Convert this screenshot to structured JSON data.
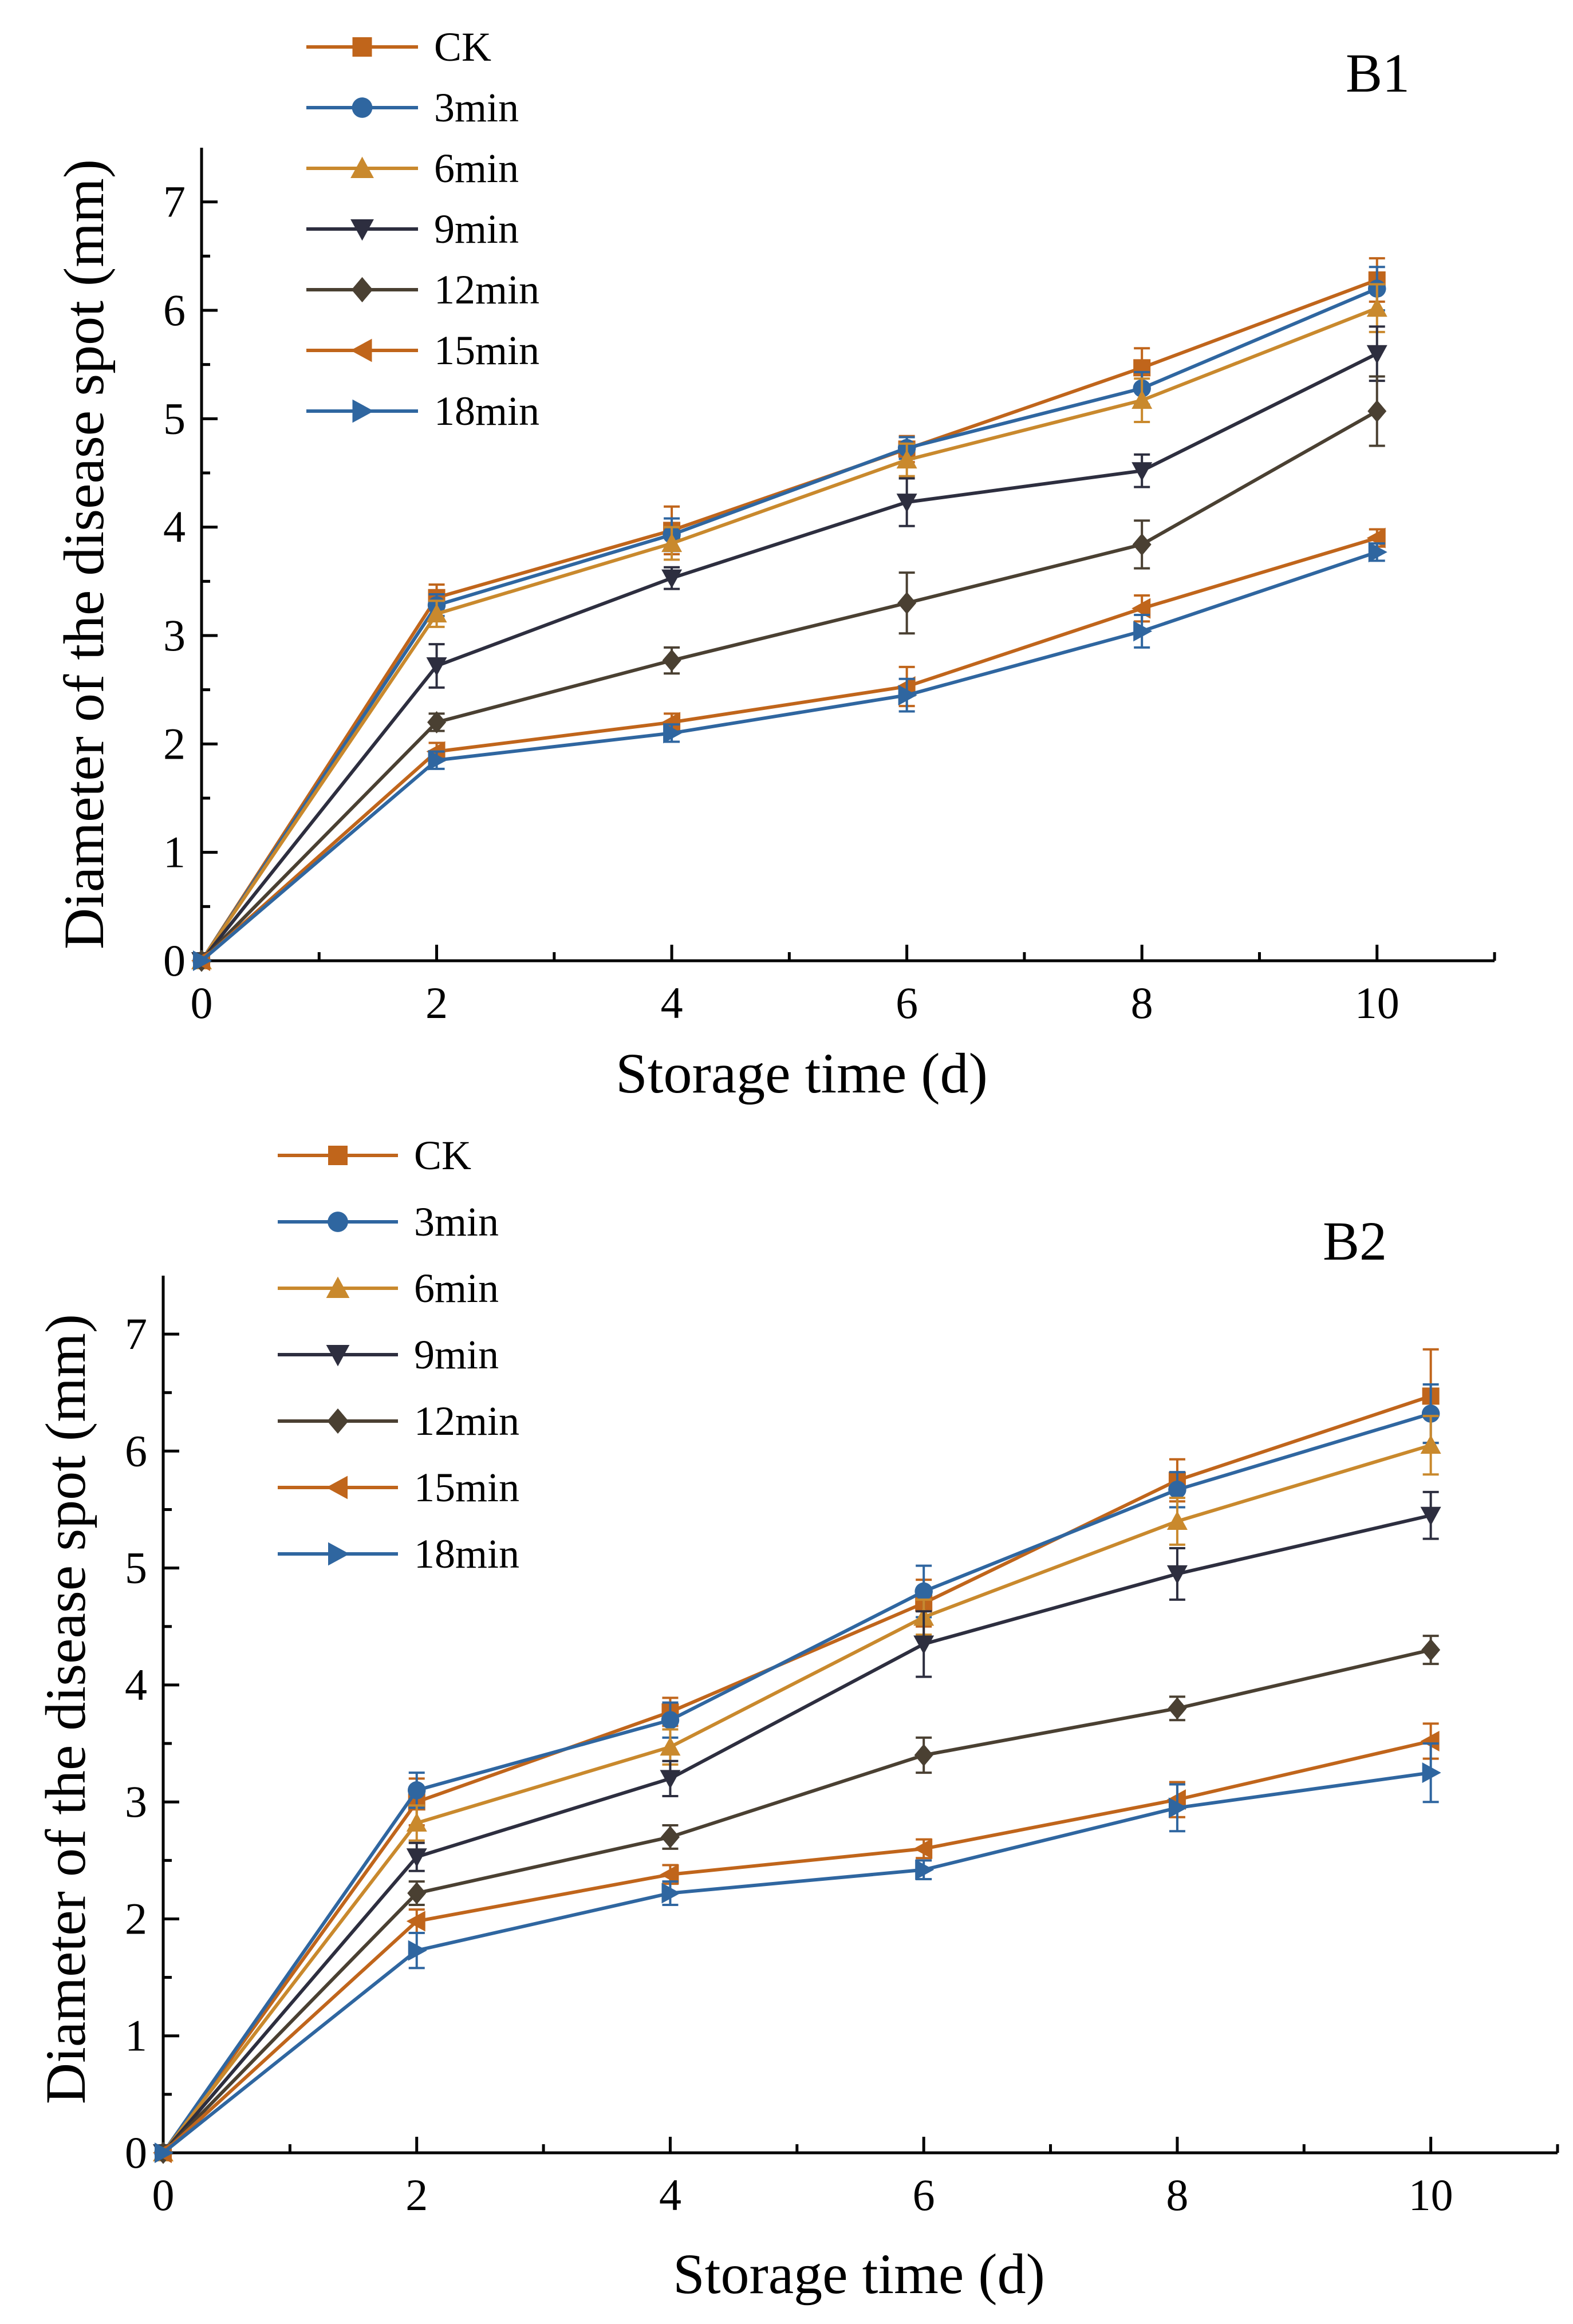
{
  "chart_data": [
    {
      "type": "line",
      "panel": "B1",
      "xlabel": "Storage time (d)",
      "ylabel": "Diameter of the disease spot (mm)",
      "x": [
        0,
        2,
        4,
        6,
        8,
        10
      ],
      "xlim": [
        0,
        11
      ],
      "ylim": [
        0,
        7.5
      ],
      "xticks": [
        0,
        2,
        4,
        6,
        8,
        10
      ],
      "yticks": [
        0,
        1,
        2,
        3,
        4,
        5,
        6,
        7
      ],
      "legend_position": "top-left",
      "series": [
        {
          "name": "CK",
          "color": "#C0651B",
          "marker": "square",
          "values": [
            0,
            3.35,
            3.97,
            4.72,
            5.47,
            6.28
          ],
          "errors": [
            0,
            0.12,
            0.22,
            0.12,
            0.18,
            0.2
          ]
        },
        {
          "name": "3min",
          "color": "#2F66A0",
          "marker": "circle",
          "values": [
            0,
            3.28,
            3.93,
            4.73,
            5.28,
            6.2
          ],
          "errors": [
            0,
            0.1,
            0.15,
            0.1,
            0.15,
            0.2
          ]
        },
        {
          "name": "6min",
          "color": "#C9892D",
          "marker": "triangle-up",
          "values": [
            0,
            3.2,
            3.85,
            4.62,
            5.17,
            6.02
          ],
          "errors": [
            0,
            0.12,
            0.15,
            0.15,
            0.2,
            0.22
          ]
        },
        {
          "name": "9min",
          "color": "#2D2E3F",
          "marker": "triangle-down",
          "values": [
            0,
            2.72,
            3.53,
            4.23,
            4.52,
            5.6
          ],
          "errors": [
            0,
            0.2,
            0.1,
            0.22,
            0.15,
            0.25
          ]
        },
        {
          "name": "12min",
          "color": "#4A4032",
          "marker": "diamond",
          "values": [
            0,
            2.2,
            2.77,
            3.3,
            3.84,
            5.07
          ],
          "errors": [
            0,
            0.08,
            0.12,
            0.28,
            0.22,
            0.32
          ]
        },
        {
          "name": "15min",
          "color": "#C0651B",
          "marker": "triangle-left",
          "values": [
            0,
            1.93,
            2.2,
            2.53,
            3.25,
            3.9
          ],
          "errors": [
            0,
            0.08,
            0.08,
            0.18,
            0.12,
            0.08
          ]
        },
        {
          "name": "18min",
          "color": "#2F66A0",
          "marker": "triangle-right",
          "values": [
            0,
            1.85,
            2.1,
            2.45,
            3.04,
            3.77
          ],
          "errors": [
            0,
            0.08,
            0.08,
            0.15,
            0.15,
            0.08
          ]
        }
      ]
    },
    {
      "type": "line",
      "panel": "B2",
      "xlabel": "Storage time (d)",
      "ylabel": "Diameter of the disease spot (mm)",
      "x": [
        0,
        2,
        4,
        6,
        8,
        10
      ],
      "xlim": [
        0,
        11
      ],
      "ylim": [
        0,
        7.5
      ],
      "xticks": [
        0,
        2,
        4,
        6,
        8,
        10
      ],
      "yticks": [
        0,
        1,
        2,
        3,
        4,
        5,
        6,
        7
      ],
      "legend_position": "top-left",
      "series": [
        {
          "name": "CK",
          "color": "#C0651B",
          "marker": "square",
          "values": [
            0,
            3.0,
            3.77,
            4.7,
            5.75,
            6.47
          ],
          "errors": [
            0,
            0.2,
            0.12,
            0.2,
            0.18,
            0.4
          ]
        },
        {
          "name": "3min",
          "color": "#2F66A0",
          "marker": "circle",
          "values": [
            0,
            3.1,
            3.7,
            4.8,
            5.67,
            6.32
          ],
          "errors": [
            0,
            0.15,
            0.15,
            0.22,
            0.15,
            0.25
          ]
        },
        {
          "name": "6min",
          "color": "#C9892D",
          "marker": "triangle-up",
          "values": [
            0,
            2.82,
            3.47,
            4.58,
            5.4,
            6.05
          ],
          "errors": [
            0,
            0.15,
            0.15,
            0.15,
            0.2,
            0.25
          ]
        },
        {
          "name": "9min",
          "color": "#2D2E3F",
          "marker": "triangle-down",
          "values": [
            0,
            2.53,
            3.2,
            4.35,
            4.95,
            5.45
          ],
          "errors": [
            0,
            0.12,
            0.15,
            0.28,
            0.22,
            0.2
          ]
        },
        {
          "name": "12min",
          "color": "#4A4032",
          "marker": "diamond",
          "values": [
            0,
            2.22,
            2.7,
            3.4,
            3.8,
            4.3
          ],
          "errors": [
            0,
            0.1,
            0.1,
            0.15,
            0.1,
            0.12
          ]
        },
        {
          "name": "15min",
          "color": "#C0651B",
          "marker": "triangle-left",
          "values": [
            0,
            1.98,
            2.38,
            2.6,
            3.02,
            3.52
          ],
          "errors": [
            0,
            0.1,
            0.08,
            0.08,
            0.15,
            0.15
          ]
        },
        {
          "name": "18min",
          "color": "#2F66A0",
          "marker": "triangle-right",
          "values": [
            0,
            1.73,
            2.22,
            2.42,
            2.95,
            3.25
          ],
          "errors": [
            0,
            0.15,
            0.1,
            0.08,
            0.2,
            0.25
          ]
        }
      ]
    }
  ]
}
